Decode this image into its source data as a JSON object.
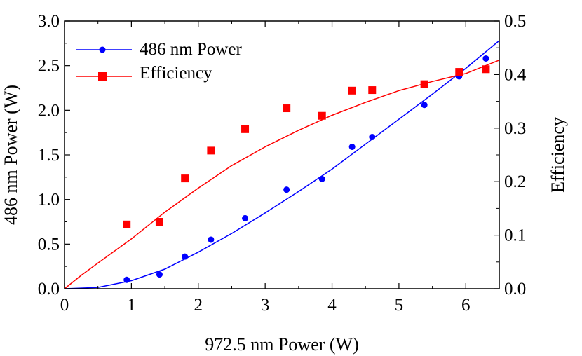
{
  "chart_data": {
    "type": "scatter",
    "xlabel": "972.5 nm Power (W)",
    "ylabel": "486 nm Power (W)",
    "y2label": "Efficiency",
    "xlim": [
      0,
      6.5
    ],
    "ylim": [
      0,
      3.0
    ],
    "y2lim": [
      0,
      0.5
    ],
    "x_ticks": [
      "0",
      "1",
      "2",
      "3",
      "4",
      "5",
      "6"
    ],
    "y_ticks": [
      "0.0",
      "0.5",
      "1.0",
      "1.5",
      "2.0",
      "2.5",
      "3.0"
    ],
    "y2_ticks": [
      "0.0",
      "0.1",
      "0.2",
      "0.3",
      "0.4",
      "0.5"
    ],
    "grid": false,
    "legend_position": "top-left",
    "series": [
      {
        "name": "486 nm Power",
        "axis": "left",
        "color": "#0000ff",
        "marker": "circle",
        "points": [
          [
            0.93,
            0.1
          ],
          [
            1.42,
            0.16
          ],
          [
            1.8,
            0.36
          ],
          [
            2.19,
            0.55
          ],
          [
            2.7,
            0.79
          ],
          [
            3.32,
            1.11
          ],
          [
            3.85,
            1.23
          ],
          [
            4.3,
            1.59
          ],
          [
            4.6,
            1.7
          ],
          [
            5.38,
            2.06
          ],
          [
            5.9,
            2.38
          ],
          [
            6.3,
            2.58
          ]
        ],
        "fit": [
          [
            0,
            0
          ],
          [
            0.5,
            0.015
          ],
          [
            1.0,
            0.09
          ],
          [
            1.5,
            0.22
          ],
          [
            2.0,
            0.41
          ],
          [
            2.5,
            0.62
          ],
          [
            3.0,
            0.85
          ],
          [
            3.5,
            1.09
          ],
          [
            4.0,
            1.34
          ],
          [
            4.5,
            1.62
          ],
          [
            5.0,
            1.9
          ],
          [
            5.5,
            2.18
          ],
          [
            6.0,
            2.47
          ],
          [
            6.5,
            2.78
          ]
        ]
      },
      {
        "name": "Efficiency",
        "axis": "right",
        "color": "#ff0000",
        "marker": "square",
        "points": [
          [
            0.93,
            0.12
          ],
          [
            1.42,
            0.125
          ],
          [
            1.8,
            0.206
          ],
          [
            2.19,
            0.258
          ],
          [
            2.7,
            0.298
          ],
          [
            3.32,
            0.337
          ],
          [
            3.85,
            0.323
          ],
          [
            4.3,
            0.37
          ],
          [
            4.6,
            0.371
          ],
          [
            5.38,
            0.382
          ],
          [
            5.9,
            0.405
          ],
          [
            6.3,
            0.41
          ]
        ],
        "fit": [
          [
            0,
            0
          ],
          [
            0.25,
            0.025
          ],
          [
            0.5,
            0.048
          ],
          [
            1.0,
            0.093
          ],
          [
            1.5,
            0.143
          ],
          [
            2.0,
            0.188
          ],
          [
            2.5,
            0.23
          ],
          [
            3.0,
            0.265
          ],
          [
            3.5,
            0.296
          ],
          [
            4.0,
            0.324
          ],
          [
            4.5,
            0.348
          ],
          [
            5.0,
            0.37
          ],
          [
            5.5,
            0.387
          ],
          [
            6.0,
            0.402
          ],
          [
            6.5,
            0.427
          ]
        ]
      }
    ]
  }
}
